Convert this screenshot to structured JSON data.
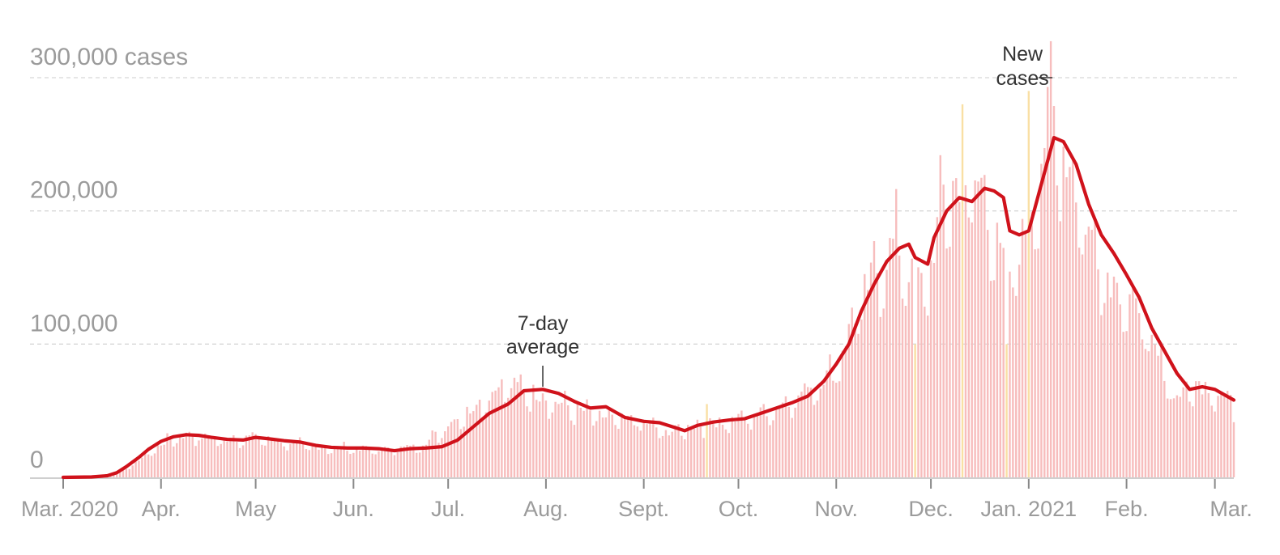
{
  "chart_data": {
    "type": "bar",
    "xlabel": "",
    "ylabel": "",
    "ylim": [
      0,
      300000
    ],
    "grid": true,
    "bar_color": "#f7bdbd",
    "highlight_bar_color": "#f9dfa4",
    "line_color": "#d0121b",
    "y_ticks": [
      {
        "value": 0,
        "label": "0"
      },
      {
        "value": 100000,
        "label": "100,000"
      },
      {
        "value": 200000,
        "label": "200,000"
      },
      {
        "value": 300000,
        "label": "300,000 cases"
      }
    ],
    "x_ticks": [
      {
        "date": "2020-03-01",
        "label": "Mar. 2020"
      },
      {
        "date": "2020-04-01",
        "label": "Apr."
      },
      {
        "date": "2020-05-01",
        "label": "May"
      },
      {
        "date": "2020-06-01",
        "label": "Jun."
      },
      {
        "date": "2020-07-01",
        "label": "Jul."
      },
      {
        "date": "2020-08-01",
        "label": "Aug."
      },
      {
        "date": "2020-09-01",
        "label": "Sept."
      },
      {
        "date": "2020-10-01",
        "label": "Oct."
      },
      {
        "date": "2020-11-01",
        "label": "Nov."
      },
      {
        "date": "2020-12-01",
        "label": "Dec."
      },
      {
        "date": "2021-01-01",
        "label": "Jan. 2021"
      },
      {
        "date": "2021-02-01",
        "label": "Feb."
      },
      {
        "date": "2021-03-01",
        "label": "Mar."
      }
    ],
    "x_range": [
      "2020-03-01",
      "2021-03-07"
    ],
    "series": [
      {
        "name": "New cases",
        "kind": "bar",
        "date_range": [
          "2020-03-01",
          "2021-03-07"
        ],
        "anchors": [
          [
            "2020-03-01",
            0
          ],
          [
            "2020-03-15",
            1000
          ],
          [
            "2020-03-20",
            5000
          ],
          [
            "2020-03-26",
            15000
          ],
          [
            "2020-04-01",
            25000
          ],
          [
            "2020-04-06",
            31000
          ],
          [
            "2020-04-10",
            32000
          ],
          [
            "2020-04-20",
            29000
          ],
          [
            "2020-04-25",
            29000
          ],
          [
            "2020-04-30",
            31000
          ],
          [
            "2020-05-10",
            27000
          ],
          [
            "2020-05-20",
            23000
          ],
          [
            "2020-06-01",
            22000
          ],
          [
            "2020-06-10",
            21000
          ],
          [
            "2020-06-20",
            23000
          ],
          [
            "2020-06-25",
            28000
          ],
          [
            "2020-07-01",
            40000
          ],
          [
            "2020-07-10",
            55000
          ],
          [
            "2020-07-18",
            70000
          ],
          [
            "2020-07-25",
            68000
          ],
          [
            "2020-08-01",
            60000
          ],
          [
            "2020-08-10",
            52000
          ],
          [
            "2020-08-20",
            45000
          ],
          [
            "2020-09-01",
            42000
          ],
          [
            "2020-09-08",
            34000
          ],
          [
            "2020-09-15",
            38000
          ],
          [
            "2020-10-01",
            44000
          ],
          [
            "2020-10-10",
            50000
          ],
          [
            "2020-10-20",
            62000
          ],
          [
            "2020-10-31",
            80000
          ],
          [
            "2020-11-05",
            110000
          ],
          [
            "2020-11-10",
            140000
          ],
          [
            "2020-11-15",
            160000
          ],
          [
            "2020-11-20",
            180000
          ],
          [
            "2020-11-27",
            140000
          ],
          [
            "2020-12-01",
            160000
          ],
          [
            "2020-12-05",
            215000
          ],
          [
            "2020-12-11",
            225000
          ],
          [
            "2020-12-17",
            220000
          ],
          [
            "2020-12-25",
            150000
          ],
          [
            "2020-12-30",
            180000
          ],
          [
            "2021-01-04",
            230000
          ],
          [
            "2021-01-08",
            280000
          ],
          [
            "2021-01-12",
            250000
          ],
          [
            "2021-01-20",
            185000
          ],
          [
            "2021-01-27",
            150000
          ],
          [
            "2021-02-03",
            130000
          ],
          [
            "2021-02-10",
            95000
          ],
          [
            "2021-02-17",
            60000
          ],
          [
            "2021-02-22",
            70000
          ],
          [
            "2021-02-28",
            68000
          ],
          [
            "2021-03-07",
            55000
          ]
        ],
        "highlight_days": [
          [
            "2020-09-21",
            55000
          ],
          [
            "2020-11-26",
            100000
          ],
          [
            "2020-12-11",
            280000
          ],
          [
            "2020-12-25",
            100000
          ],
          [
            "2021-01-01",
            290000
          ]
        ]
      },
      {
        "name": "7-day average",
        "kind": "line",
        "points": [
          [
            "2020-03-01",
            0
          ],
          [
            "2020-03-10",
            300
          ],
          [
            "2020-03-15",
            1200
          ],
          [
            "2020-03-18",
            3500
          ],
          [
            "2020-03-21",
            8000
          ],
          [
            "2020-03-25",
            15000
          ],
          [
            "2020-03-28",
            21000
          ],
          [
            "2020-04-01",
            27000
          ],
          [
            "2020-04-05",
            30500
          ],
          [
            "2020-04-09",
            32000
          ],
          [
            "2020-04-13",
            31500
          ],
          [
            "2020-04-17",
            30000
          ],
          [
            "2020-04-22",
            28500
          ],
          [
            "2020-04-27",
            28000
          ],
          [
            "2020-05-01",
            30000
          ],
          [
            "2020-05-05",
            29000
          ],
          [
            "2020-05-10",
            27500
          ],
          [
            "2020-05-15",
            26500
          ],
          [
            "2020-05-20",
            24000
          ],
          [
            "2020-05-25",
            22500
          ],
          [
            "2020-05-30",
            22000
          ],
          [
            "2020-06-04",
            22000
          ],
          [
            "2020-06-09",
            21500
          ],
          [
            "2020-06-14",
            20000
          ],
          [
            "2020-06-19",
            21500
          ],
          [
            "2020-06-24",
            22000
          ],
          [
            "2020-06-29",
            23000
          ],
          [
            "2020-07-04",
            28000
          ],
          [
            "2020-07-09",
            38000
          ],
          [
            "2020-07-14",
            48000
          ],
          [
            "2020-07-20",
            55000
          ],
          [
            "2020-07-25",
            65000
          ],
          [
            "2020-07-31",
            66000
          ],
          [
            "2020-08-05",
            63000
          ],
          [
            "2020-08-10",
            57000
          ],
          [
            "2020-08-15",
            52000
          ],
          [
            "2020-08-20",
            53000
          ],
          [
            "2020-08-26",
            45000
          ],
          [
            "2020-09-01",
            42000
          ],
          [
            "2020-09-06",
            41000
          ],
          [
            "2020-09-10",
            38000
          ],
          [
            "2020-09-14",
            35000
          ],
          [
            "2020-09-18",
            39000
          ],
          [
            "2020-09-23",
            41500
          ],
          [
            "2020-09-28",
            43000
          ],
          [
            "2020-10-03",
            44000
          ],
          [
            "2020-10-08",
            48000
          ],
          [
            "2020-10-13",
            52000
          ],
          [
            "2020-10-18",
            56000
          ],
          [
            "2020-10-23",
            61000
          ],
          [
            "2020-10-28",
            72000
          ],
          [
            "2020-11-01",
            85000
          ],
          [
            "2020-11-05",
            100000
          ],
          [
            "2020-11-09",
            125000
          ],
          [
            "2020-11-13",
            145000
          ],
          [
            "2020-11-17",
            162000
          ],
          [
            "2020-11-21",
            172000
          ],
          [
            "2020-11-24",
            175000
          ],
          [
            "2020-11-26",
            165000
          ],
          [
            "2020-11-30",
            160000
          ],
          [
            "2020-12-02",
            180000
          ],
          [
            "2020-12-06",
            200000
          ],
          [
            "2020-12-10",
            210000
          ],
          [
            "2020-12-14",
            207000
          ],
          [
            "2020-12-18",
            217000
          ],
          [
            "2020-12-21",
            215000
          ],
          [
            "2020-12-24",
            210000
          ],
          [
            "2020-12-26",
            185000
          ],
          [
            "2020-12-29",
            182000
          ],
          [
            "2021-01-01",
            185000
          ],
          [
            "2021-01-05",
            220000
          ],
          [
            "2021-01-09",
            255000
          ],
          [
            "2021-01-12",
            252000
          ],
          [
            "2021-01-16",
            235000
          ],
          [
            "2021-01-20",
            205000
          ],
          [
            "2021-01-24",
            182000
          ],
          [
            "2021-01-28",
            168000
          ],
          [
            "2021-02-01",
            152000
          ],
          [
            "2021-02-05",
            135000
          ],
          [
            "2021-02-09",
            112000
          ],
          [
            "2021-02-13",
            95000
          ],
          [
            "2021-02-17",
            78000
          ],
          [
            "2021-02-21",
            66000
          ],
          [
            "2021-02-25",
            68000
          ],
          [
            "2021-03-01",
            66000
          ],
          [
            "2021-03-07",
            58000
          ]
        ]
      }
    ],
    "annotations": [
      {
        "name": "7-day average",
        "lines": [
          "7-day",
          "average"
        ],
        "target_date": "2020-07-31",
        "target_value": 68000
      },
      {
        "name": "New cases",
        "lines": [
          "New",
          "cases"
        ],
        "target_date": "2021-01-08",
        "target_value": 300000
      }
    ]
  }
}
